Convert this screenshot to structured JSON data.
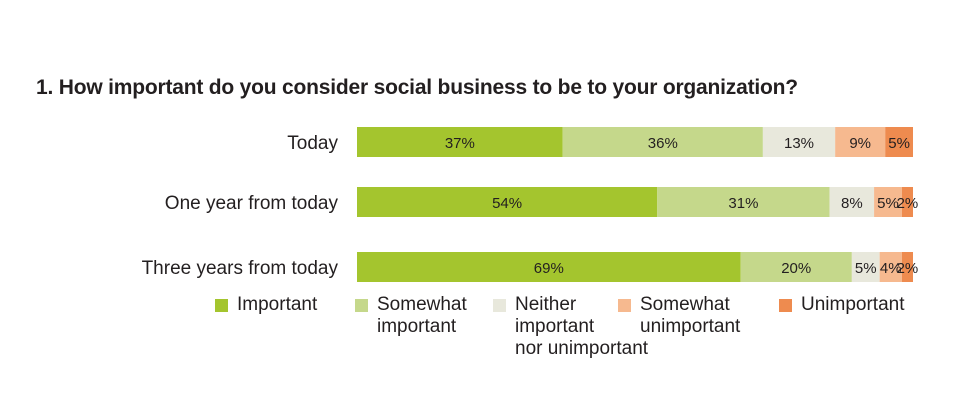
{
  "title": "1. How important do you consider social business to be to your organization?",
  "chart_data": {
    "type": "bar",
    "orientation": "horizontal",
    "stacked": true,
    "categories": [
      "Today",
      "One year from today",
      "Three years from today"
    ],
    "series": [
      {
        "name": "Important",
        "color": "#a4c52e",
        "values": [
          37,
          54,
          69
        ],
        "labels": [
          "37%",
          "54%",
          "69%"
        ]
      },
      {
        "name": "Somewhat\nimportant",
        "color": "#c5d88b",
        "values": [
          36,
          31,
          20
        ],
        "labels": [
          "36%",
          "31%",
          "20%"
        ]
      },
      {
        "name": "Neither\nimportant\nnor unimportant",
        "color": "#e8e8dc",
        "values": [
          13,
          8,
          5
        ],
        "labels": [
          "13%",
          "8%",
          "5%"
        ]
      },
      {
        "name": "Somewhat\nunimportant",
        "color": "#f6b98f",
        "values": [
          9,
          5,
          4
        ],
        "labels": [
          "9%",
          "5%",
          "4%"
        ]
      },
      {
        "name": "Unimportant",
        "color": "#ee8b4f",
        "values": [
          5,
          2,
          2
        ],
        "labels": [
          "5%",
          "2%",
          "2%"
        ]
      }
    ],
    "xlim": [
      0,
      100
    ],
    "grid": false,
    "legend": "bottom"
  }
}
